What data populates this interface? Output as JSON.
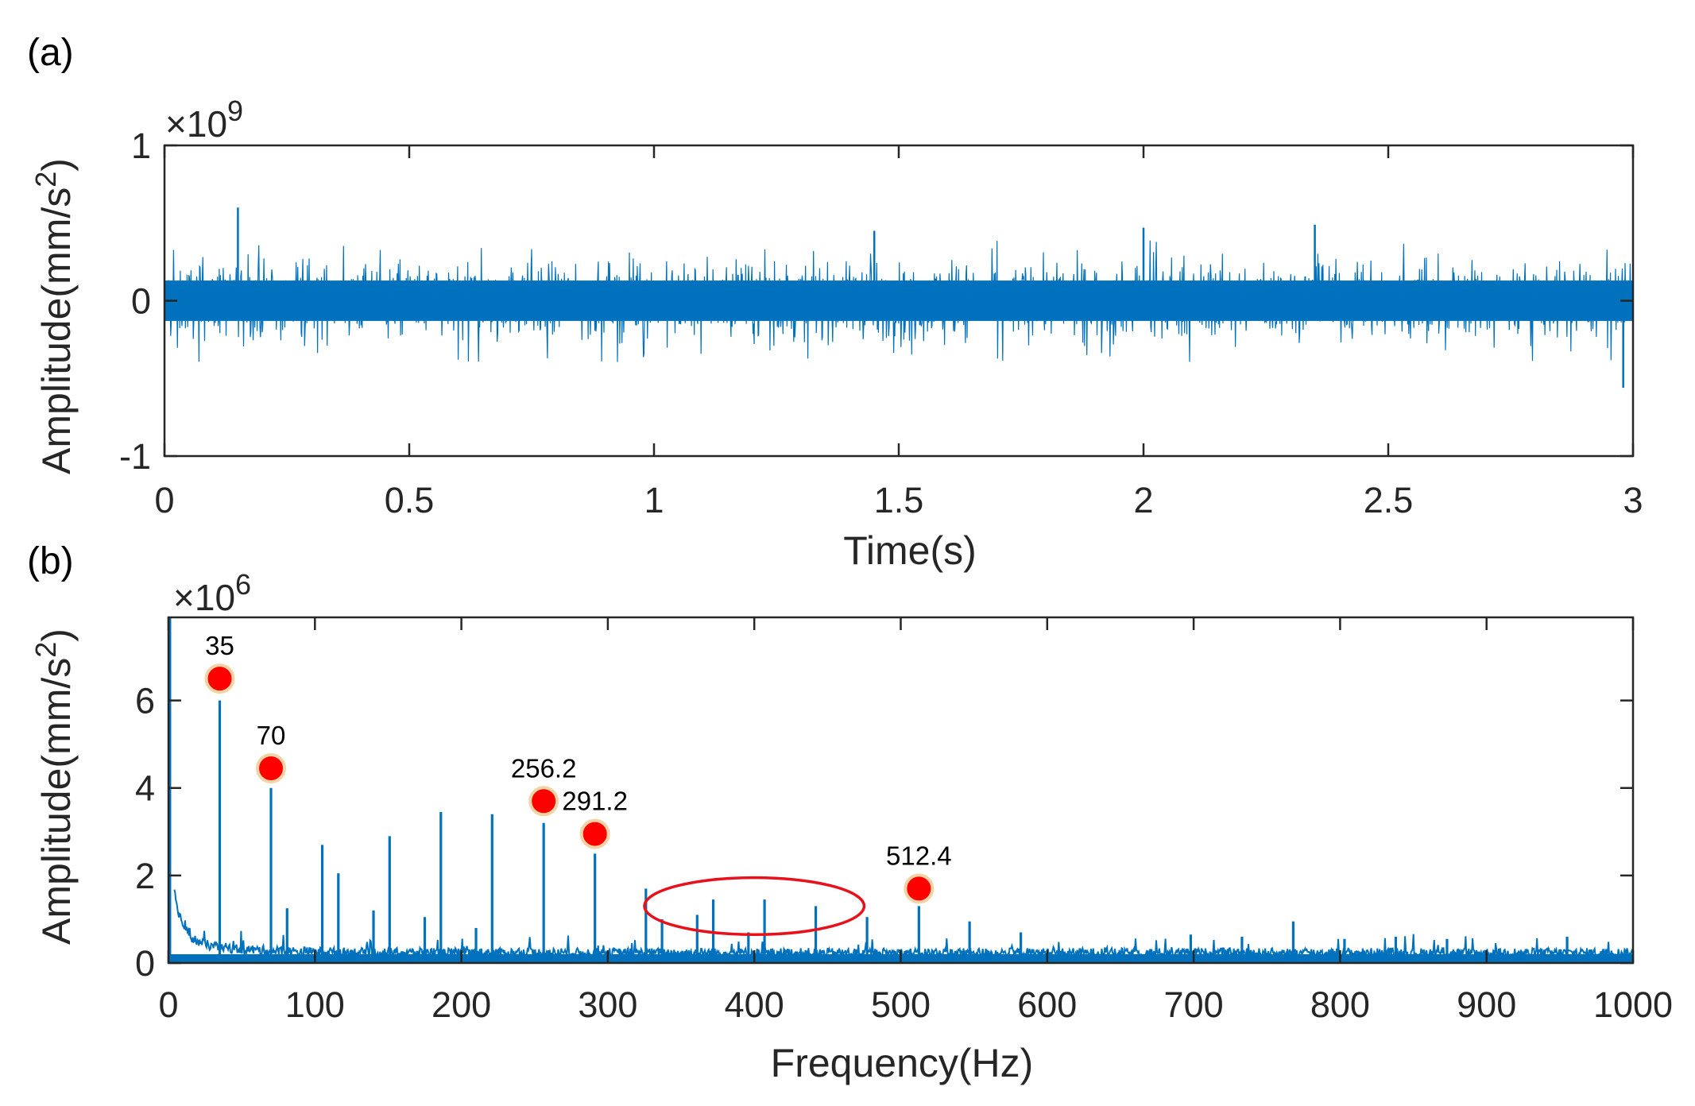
{
  "chart_data": [
    {
      "panel_label": "(a)",
      "type": "line",
      "title": "",
      "xlabel": "Time(s)",
      "ylabel": "Amplitude(mm/s",
      "ylabel_sup": "2",
      "ylabel_close": ")",
      "y_exponent_prefix": "×10",
      "y_exponent": "9",
      "xlim": [
        0,
        3
      ],
      "ylim": [
        -1,
        1
      ],
      "xticks": [
        0,
        0.5,
        1,
        1.5,
        2,
        2.5,
        3
      ],
      "xtick_labels": [
        "0",
        "0.5",
        "1",
        "1.5",
        "2",
        "2.5",
        "3"
      ],
      "yticks": [
        -1,
        0,
        1
      ],
      "ytick_labels": [
        "-1",
        "0",
        "1"
      ],
      "color": "#0072BD",
      "signal": {
        "description_units": "x1e9 mm/s^2",
        "noise_envelope_typical": 0.2,
        "noise_envelope_max": 0.48,
        "spikes": [
          {
            "t": 0.15,
            "v": 0.6
          },
          {
            "t": 1.45,
            "v": 0.45
          },
          {
            "t": 2.0,
            "v": 0.47
          },
          {
            "t": 2.35,
            "v": 0.49
          },
          {
            "t": 2.98,
            "v": -0.56
          }
        ]
      }
    },
    {
      "panel_label": "(b)",
      "type": "line",
      "title": "",
      "xlabel": "Frequency(Hz)",
      "ylabel": "Amplitude(mm/s",
      "ylabel_sup": "2",
      "ylabel_close": ")",
      "y_exponent_prefix": "×10",
      "y_exponent": "6",
      "xlim": [
        0,
        1000
      ],
      "ylim": [
        0,
        7.9
      ],
      "xticks": [
        0,
        100,
        200,
        300,
        400,
        500,
        600,
        700,
        800,
        900,
        1000
      ],
      "xtick_labels": [
        "0",
        "100",
        "200",
        "300",
        "400",
        "500",
        "600",
        "700",
        "800",
        "900",
        "1000"
      ],
      "yticks": [
        0,
        2,
        4,
        6
      ],
      "ytick_labels": [
        "0",
        "2",
        "4",
        "6"
      ],
      "color": "#0072BD",
      "peaks": [
        {
          "f": 1,
          "a": 7.9
        },
        {
          "f": 35,
          "a": 6.0
        },
        {
          "f": 70,
          "a": 4.0
        },
        {
          "f": 81,
          "a": 1.25
        },
        {
          "f": 105,
          "a": 2.7
        },
        {
          "f": 116,
          "a": 2.05
        },
        {
          "f": 140,
          "a": 1.2
        },
        {
          "f": 151,
          "a": 2.9
        },
        {
          "f": 175,
          "a": 1.05
        },
        {
          "f": 186,
          "a": 3.45
        },
        {
          "f": 210,
          "a": 0.8
        },
        {
          "f": 221,
          "a": 3.4
        },
        {
          "f": 256.2,
          "a": 3.2
        },
        {
          "f": 291.2,
          "a": 2.5
        },
        {
          "f": 326,
          "a": 1.7
        },
        {
          "f": 337,
          "a": 1.0
        },
        {
          "f": 361,
          "a": 1.1
        },
        {
          "f": 372,
          "a": 1.45
        },
        {
          "f": 396,
          "a": 0.7
        },
        {
          "f": 407,
          "a": 1.45
        },
        {
          "f": 442,
          "a": 1.3
        },
        {
          "f": 477,
          "a": 1.05
        },
        {
          "f": 512.4,
          "a": 1.3
        },
        {
          "f": 547,
          "a": 0.95
        },
        {
          "f": 582,
          "a": 0.7
        },
        {
          "f": 698,
          "a": 0.65
        },
        {
          "f": 733,
          "a": 0.6
        },
        {
          "f": 768,
          "a": 0.95
        },
        {
          "f": 803,
          "a": 0.55
        },
        {
          "f": 838,
          "a": 0.6
        },
        {
          "f": 873,
          "a": 0.55
        },
        {
          "f": 955,
          "a": 0.6
        }
      ],
      "markers": [
        {
          "label": "35",
          "f": 35,
          "a": 6.5
        },
        {
          "label": "70",
          "f": 70,
          "a": 4.45
        },
        {
          "label": "256.2",
          "f": 256.2,
          "a": 3.7
        },
        {
          "label": "291.2",
          "f": 291.2,
          "a": 2.95
        },
        {
          "label": "512.4",
          "f": 512.4,
          "a": 1.7
        }
      ],
      "marker_color": "#FF0000",
      "highlight_ellipse": {
        "f_center": 400,
        "f_half_width": 75,
        "a_center": 1.3,
        "a_half_height": 0.65,
        "color": "#E8101A"
      }
    }
  ]
}
